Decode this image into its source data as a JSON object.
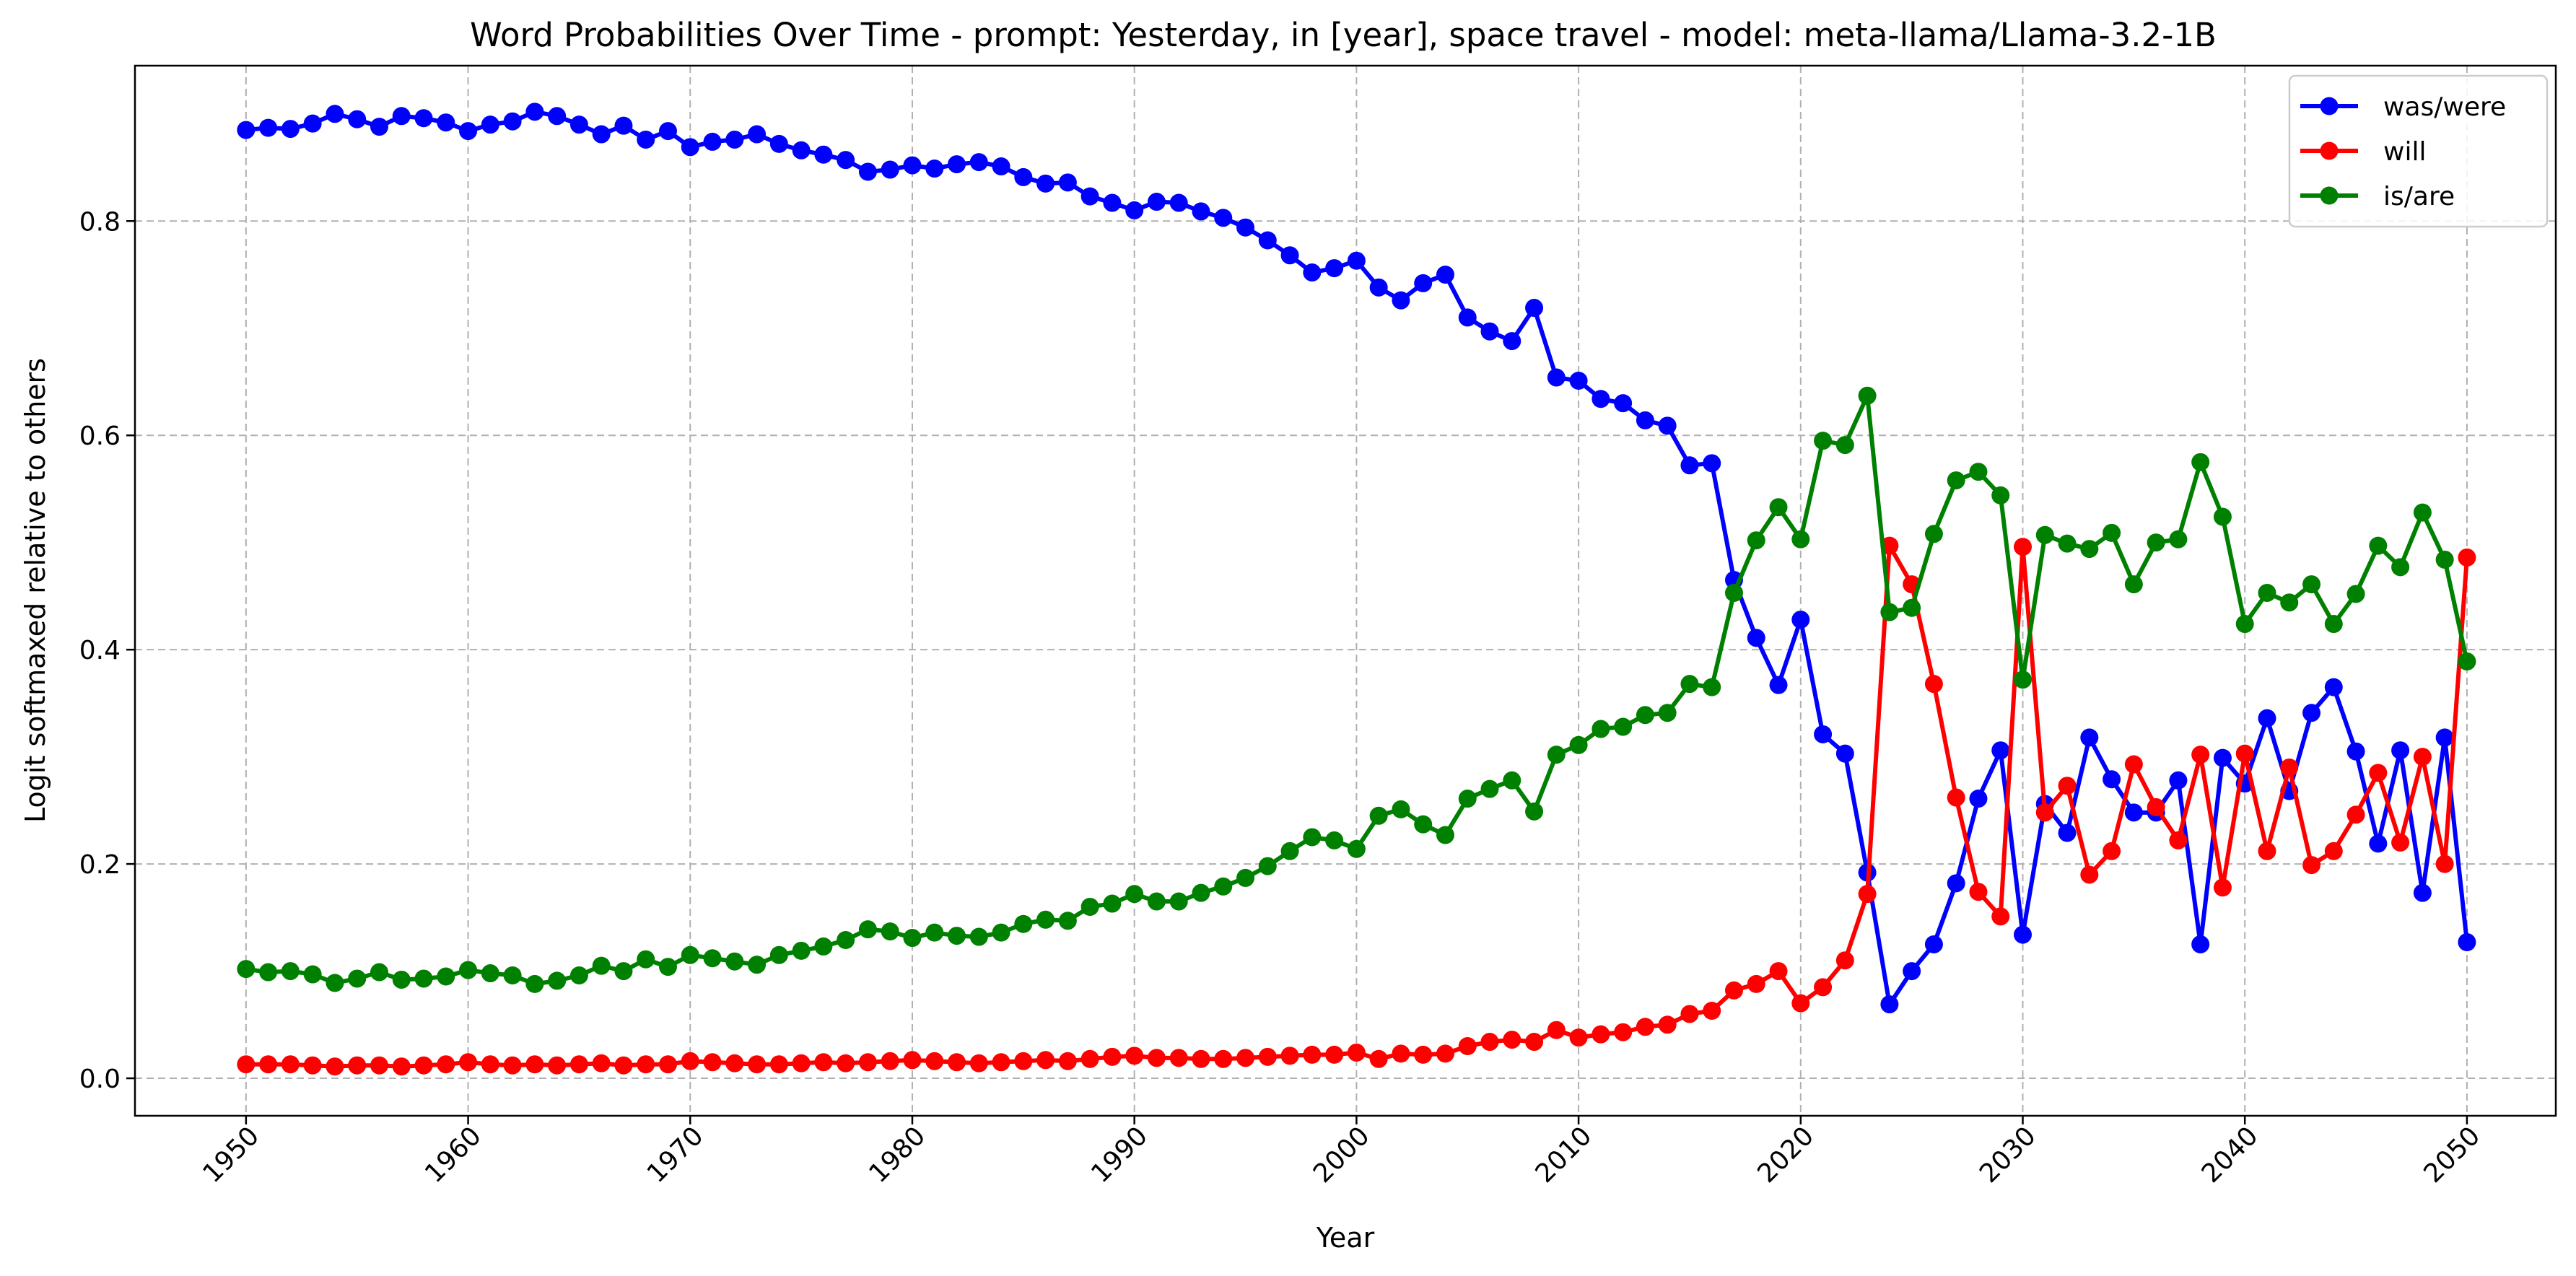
{
  "chart_data": {
    "type": "line",
    "title": "Word Probabilities Over Time - prompt: Yesterday, in [year], space travel - model: meta-llama/Llama-3.2-1B",
    "xlabel": "Year",
    "ylabel": "Logit softmaxed relative to others",
    "xlim": [
      1945,
      2054
    ],
    "ylim": [
      -0.035,
      0.945
    ],
    "x_ticks": [
      1950,
      1960,
      1970,
      1980,
      1990,
      2000,
      2010,
      2020,
      2030,
      2040,
      2050
    ],
    "y_ticks": [
      0.0,
      0.2,
      0.4,
      0.6,
      0.8
    ],
    "y_tick_labels": [
      "0.0",
      "0.2",
      "0.4",
      "0.6",
      "0.8"
    ],
    "grid": true,
    "legend_position": "top-right",
    "x_start": 1950,
    "x_end": 2050,
    "series": [
      {
        "name": "was/were",
        "color": "#0000ff",
        "values": [
          0.885,
          0.887,
          0.886,
          0.891,
          0.9,
          0.895,
          0.888,
          0.898,
          0.896,
          0.892,
          0.884,
          0.89,
          0.893,
          0.902,
          0.898,
          0.89,
          0.881,
          0.889,
          0.876,
          0.884,
          0.869,
          0.874,
          0.876,
          0.881,
          0.872,
          0.866,
          0.862,
          0.857,
          0.846,
          0.848,
          0.852,
          0.849,
          0.853,
          0.855,
          0.851,
          0.841,
          0.835,
          0.836,
          0.823,
          0.817,
          0.81,
          0.818,
          0.817,
          0.809,
          0.803,
          0.794,
          0.782,
          0.768,
          0.752,
          0.756,
          0.763,
          0.738,
          0.726,
          0.742,
          0.75,
          0.71,
          0.697,
          0.688,
          0.719,
          0.654,
          0.651,
          0.634,
          0.63,
          0.614,
          0.609,
          0.572,
          0.574,
          0.465,
          0.411,
          0.367,
          0.428,
          0.321,
          0.303,
          0.192,
          0.069,
          0.1,
          0.125,
          0.182,
          0.261,
          0.306,
          0.134,
          0.256,
          0.229,
          0.318,
          0.279,
          0.248,
          0.248,
          0.278,
          0.125,
          0.299,
          0.275,
          0.336,
          0.268,
          0.341,
          0.365,
          0.305,
          0.219,
          0.306,
          0.173,
          0.318,
          0.127
        ]
      },
      {
        "name": "will",
        "color": "#ff0000",
        "values": [
          0.013,
          0.013,
          0.013,
          0.012,
          0.011,
          0.012,
          0.012,
          0.011,
          0.012,
          0.013,
          0.015,
          0.013,
          0.012,
          0.013,
          0.012,
          0.013,
          0.014,
          0.012,
          0.013,
          0.013,
          0.016,
          0.015,
          0.014,
          0.013,
          0.013,
          0.014,
          0.015,
          0.014,
          0.015,
          0.016,
          0.017,
          0.016,
          0.015,
          0.014,
          0.015,
          0.016,
          0.017,
          0.016,
          0.018,
          0.02,
          0.021,
          0.019,
          0.019,
          0.018,
          0.018,
          0.019,
          0.02,
          0.021,
          0.022,
          0.022,
          0.024,
          0.018,
          0.023,
          0.022,
          0.023,
          0.03,
          0.034,
          0.036,
          0.034,
          0.045,
          0.038,
          0.041,
          0.043,
          0.048,
          0.05,
          0.06,
          0.063,
          0.082,
          0.088,
          0.1,
          0.07,
          0.085,
          0.11,
          0.172,
          0.497,
          0.461,
          0.368,
          0.262,
          0.174,
          0.151,
          0.496,
          0.248,
          0.273,
          0.19,
          0.212,
          0.293,
          0.253,
          0.222,
          0.302,
          0.178,
          0.303,
          0.212,
          0.29,
          0.199,
          0.212,
          0.246,
          0.285,
          0.22,
          0.3,
          0.2,
          0.486
        ]
      },
      {
        "name": "is/are",
        "color": "#008000",
        "values": [
          0.102,
          0.099,
          0.1,
          0.097,
          0.089,
          0.093,
          0.099,
          0.092,
          0.093,
          0.095,
          0.101,
          0.098,
          0.096,
          0.088,
          0.091,
          0.096,
          0.105,
          0.1,
          0.111,
          0.104,
          0.115,
          0.112,
          0.109,
          0.106,
          0.115,
          0.119,
          0.123,
          0.129,
          0.139,
          0.137,
          0.131,
          0.136,
          0.133,
          0.132,
          0.136,
          0.144,
          0.148,
          0.147,
          0.16,
          0.163,
          0.172,
          0.165,
          0.165,
          0.173,
          0.179,
          0.187,
          0.198,
          0.212,
          0.225,
          0.222,
          0.214,
          0.245,
          0.251,
          0.237,
          0.227,
          0.261,
          0.27,
          0.278,
          0.249,
          0.302,
          0.311,
          0.326,
          0.328,
          0.339,
          0.341,
          0.368,
          0.365,
          0.453,
          0.502,
          0.533,
          0.503,
          0.595,
          0.591,
          0.637,
          0.435,
          0.439,
          0.508,
          0.558,
          0.566,
          0.544,
          0.372,
          0.507,
          0.499,
          0.494,
          0.509,
          0.461,
          0.5,
          0.503,
          0.575,
          0.524,
          0.424,
          0.453,
          0.444,
          0.461,
          0.424,
          0.452,
          0.497,
          0.477,
          0.528,
          0.484,
          0.389
        ]
      }
    ]
  }
}
